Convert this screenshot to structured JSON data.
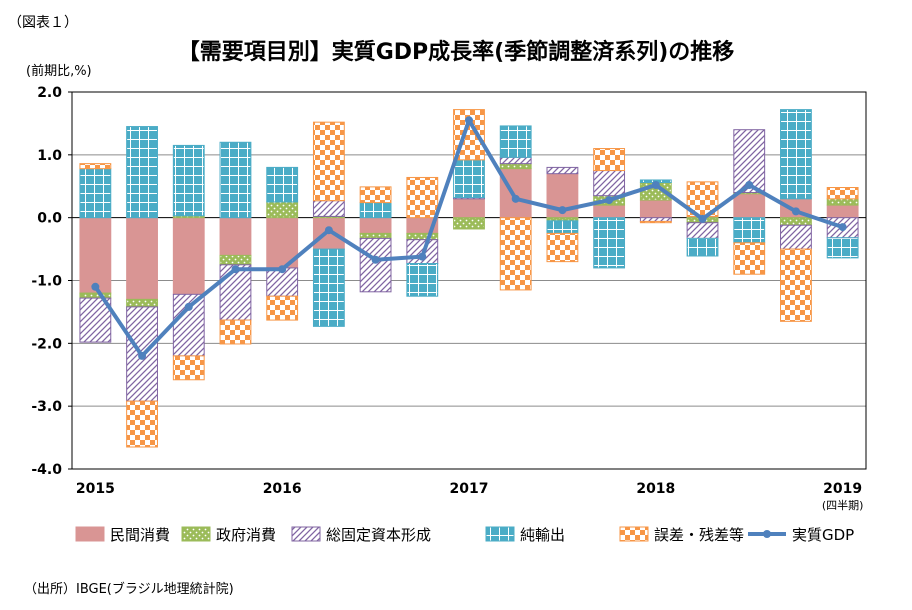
{
  "figure_label": "（図表１）",
  "title": "【需要項目別】実質GDP成長率(季節調整済系列)の推移",
  "unit_label": "(前期比,%)",
  "source": "（出所）IBGE(ブラジル地理統計院)",
  "colors": {
    "private_consumption": "#d99594",
    "government_consumption": "#9bbb59",
    "fixed_capital": "#8064a2",
    "net_exports": "#4bacc6",
    "residual": "#f79646",
    "real_gdp": "#4f81bd"
  },
  "chart_data": {
    "type": "bar",
    "stacked": true,
    "categories": [
      "2015 Q1",
      "2015 Q2",
      "2015 Q3",
      "2015 Q4",
      "2016 Q1",
      "2016 Q2",
      "2016 Q3",
      "2016 Q4",
      "2017 Q1",
      "2017 Q2",
      "2017 Q3",
      "2017 Q4",
      "2018 Q1",
      "2018 Q2",
      "2018 Q3",
      "2018 Q4",
      "2019 Q1"
    ],
    "x_tick_labels": [
      "2015",
      "2016",
      "2017",
      "2018",
      "2019"
    ],
    "x_tick_sublabel": "(四半期)",
    "y_tick_labels": [
      "2.0",
      "1.0",
      "0.0",
      "-1.0",
      "-2.0",
      "-3.0",
      "-4.0"
    ],
    "ylim": [
      -4.0,
      2.0
    ],
    "grid": true,
    "legend_position": "bottom",
    "series": [
      {
        "name": "民間消費",
        "key": "private_consumption",
        "values": [
          -1.2,
          -1.3,
          -1.22,
          -0.6,
          -0.8,
          -0.5,
          -0.25,
          -0.25,
          0.3,
          0.78,
          0.7,
          0.2,
          0.28,
          0.02,
          0.38,
          0.3,
          0.2
        ]
      },
      {
        "name": "政府消費",
        "key": "government_consumption",
        "values": [
          -0.08,
          -0.12,
          0.03,
          -0.15,
          0.25,
          0.02,
          -0.08,
          -0.1,
          -0.18,
          0.08,
          -0.05,
          0.15,
          0.28,
          -0.08,
          0.02,
          -0.12,
          0.1
        ]
      },
      {
        "name": "総固定資本形成",
        "key": "fixed_capital",
        "values": [
          -0.7,
          -1.5,
          -0.98,
          -0.88,
          -0.45,
          0.25,
          -0.85,
          -0.38,
          0.02,
          0.1,
          0.1,
          0.4,
          -0.06,
          -0.25,
          1.0,
          -0.38,
          -0.32
        ]
      },
      {
        "name": "純輸出",
        "key": "net_exports",
        "values": [
          0.78,
          1.45,
          1.12,
          1.2,
          0.55,
          -1.23,
          0.24,
          -0.52,
          0.6,
          0.5,
          -0.2,
          -0.8,
          0.04,
          -0.28,
          -0.4,
          1.42,
          -0.32
        ]
      },
      {
        "name": "誤差・残差等",
        "key": "residual",
        "values": [
          0.08,
          -0.73,
          -0.38,
          -0.38,
          -0.38,
          1.25,
          0.25,
          0.64,
          0.8,
          -1.15,
          -0.45,
          0.35,
          -0.02,
          0.55,
          -0.5,
          -1.15,
          0.18
        ]
      },
      {
        "name": "実質GDP",
        "key": "real_gdp",
        "type": "line",
        "values": [
          -1.1,
          -2.2,
          -1.42,
          -0.82,
          -0.82,
          -0.2,
          -0.67,
          -0.62,
          1.55,
          0.3,
          0.12,
          0.28,
          0.52,
          -0.02,
          0.52,
          0.1,
          -0.15
        ]
      }
    ]
  }
}
